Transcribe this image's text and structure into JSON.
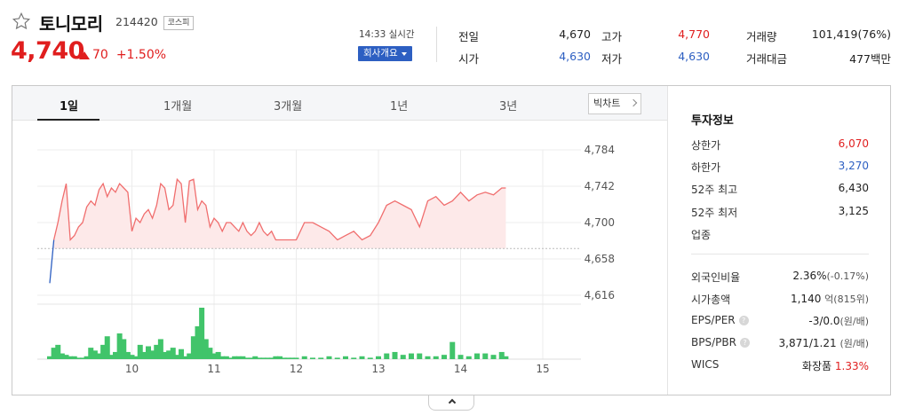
{
  "stock": {
    "name": "토니모리",
    "code": "214420",
    "market": "코스피",
    "price": "4,740",
    "change": "70",
    "change_pct": "+1.50%",
    "time": "14:33 실시간",
    "company_btn": "회사개요"
  },
  "quote": {
    "prev_close_label": "전일",
    "prev_close": "4,670",
    "high_label": "고가",
    "high": "4,770",
    "volume_label": "거래량",
    "volume": "101,419(76%)",
    "open_label": "시가",
    "open": "4,630",
    "low_label": "저가",
    "low": "4,630",
    "trade_value_label": "거래대금",
    "trade_value": "477백만"
  },
  "tabs": [
    "1일",
    "1개월",
    "3개월",
    "1년",
    "3년"
  ],
  "bigchart_label": "빅차트",
  "colors": {
    "up": "#e01e1e",
    "down": "#2d5fc2",
    "volume": "#41c46a",
    "line": "#f06e6e",
    "accent": "#2d5fc2"
  },
  "chart_data": {
    "type": "line",
    "y_ticks": [
      "4,784",
      "4,742",
      "4,700",
      "4,658",
      "4,616"
    ],
    "x_ticks": [
      "10",
      "11",
      "12",
      "13",
      "14",
      "15"
    ],
    "baseline": 4670,
    "ylim": [
      4616,
      4784
    ],
    "x": [
      9.0,
      9.05,
      9.1,
      9.15,
      9.2,
      9.25,
      9.3,
      9.35,
      9.4,
      9.45,
      9.5,
      9.55,
      9.6,
      9.65,
      9.7,
      9.75,
      9.8,
      9.85,
      9.9,
      9.95,
      10.0,
      10.05,
      10.1,
      10.15,
      10.2,
      10.25,
      10.3,
      10.35,
      10.4,
      10.45,
      10.5,
      10.55,
      10.6,
      10.65,
      10.7,
      10.75,
      10.8,
      10.85,
      10.9,
      10.95,
      11.0,
      11.05,
      11.1,
      11.15,
      11.2,
      11.25,
      11.3,
      11.35,
      11.4,
      11.45,
      11.5,
      11.55,
      11.6,
      11.65,
      11.7,
      11.75,
      11.8,
      11.85,
      11.9,
      11.95,
      12.0,
      12.1,
      12.2,
      12.3,
      12.4,
      12.5,
      12.6,
      12.7,
      12.8,
      12.9,
      13.0,
      13.1,
      13.2,
      13.3,
      13.4,
      13.5,
      13.6,
      13.7,
      13.8,
      13.9,
      14.0,
      14.1,
      14.2,
      14.3,
      14.4,
      14.5,
      14.55
    ],
    "prices": [
      4630,
      4680,
      4700,
      4725,
      4745,
      4680,
      4685,
      4695,
      4700,
      4718,
      4725,
      4720,
      4738,
      4745,
      4730,
      4740,
      4735,
      4745,
      4740,
      4735,
      4690,
      4705,
      4700,
      4710,
      4715,
      4705,
      4720,
      4745,
      4740,
      4715,
      4720,
      4750,
      4745,
      4700,
      4748,
      4750,
      4715,
      4725,
      4720,
      4695,
      4705,
      4700,
      4690,
      4700,
      4700,
      4695,
      4690,
      4700,
      4690,
      4685,
      4690,
      4700,
      4690,
      4685,
      4690,
      4680,
      4680,
      4680,
      4680,
      4680,
      4680,
      4700,
      4700,
      4695,
      4690,
      4680,
      4685,
      4690,
      4680,
      4685,
      4700,
      4720,
      4725,
      4720,
      4715,
      4695,
      4725,
      4730,
      4720,
      4725,
      4735,
      4725,
      4732,
      4735,
      4732,
      4740,
      4740
    ],
    "volumes": [
      2,
      8,
      10,
      4,
      3,
      2,
      2,
      1,
      1,
      2,
      8,
      6,
      4,
      10,
      16,
      3,
      5,
      18,
      14,
      5,
      3,
      2,
      10,
      5,
      9,
      6,
      10,
      14,
      5,
      6,
      8,
      3,
      7,
      2,
      4,
      16,
      23,
      36,
      14,
      8,
      4,
      5,
      2,
      2,
      1,
      2,
      2,
      2,
      1,
      1,
      2,
      1,
      1,
      1,
      1,
      2,
      2,
      1,
      1,
      1,
      1,
      2,
      1,
      1,
      2,
      1,
      2,
      1,
      2,
      1,
      2,
      4,
      5,
      3,
      4,
      4,
      2,
      2,
      3,
      12,
      3,
      2,
      4,
      4,
      3,
      5,
      2
    ]
  },
  "info": {
    "title": "투자정보",
    "upper_limit_label": "상한가",
    "upper_limit": "6,070",
    "lower_limit_label": "하한가",
    "lower_limit": "3,270",
    "high52_label": "52주 최고",
    "high52": "6,430",
    "low52_label": "52주 최저",
    "low52": "3,125",
    "industry_label": "업종",
    "foreign_label": "외국인비율",
    "foreign": "2.36%",
    "foreign_change": "(-0.17%)",
    "mcap_label": "시가총액",
    "mcap": "1,140",
    "mcap_unit": "억(815위)",
    "eps_label": "EPS/PER",
    "eps": "-3/0.0",
    "eps_unit": "(원/배)",
    "bps_label": "BPS/PBR",
    "bps": "3,871/1.21",
    "bps_unit": "(원/배)",
    "wics_label": "WICS",
    "wics": "화장품",
    "wics_pct": "1.33%"
  }
}
